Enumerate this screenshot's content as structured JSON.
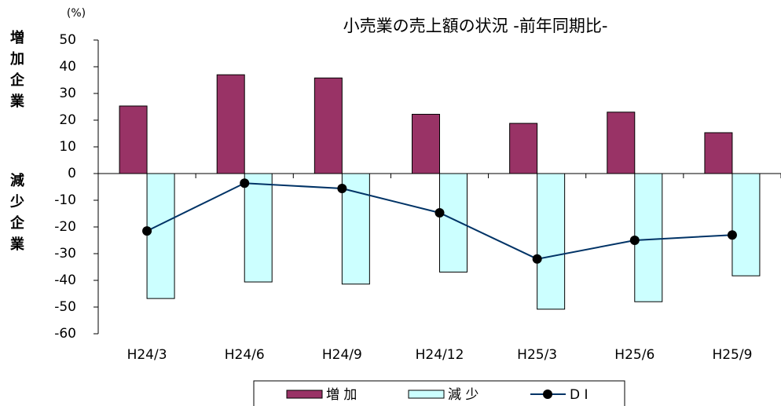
{
  "chart_data": {
    "type": "bar",
    "title": "小売業の売上額の状況 -前年同期比-",
    "unit_label": "(%)",
    "y_label_top": "増加企業",
    "y_label_bottom": "減少企業",
    "categories": [
      "H24/3",
      "H24/6",
      "H24/9",
      "H24/12",
      "H25/3",
      "H25/6",
      "H25/9"
    ],
    "series": [
      {
        "name": "増 加",
        "color": "#993366",
        "kind": "bar",
        "values": [
          25.3,
          37.0,
          35.8,
          22.2,
          18.8,
          23.0,
          15.3
        ]
      },
      {
        "name": "減 少",
        "color": "#ccffff",
        "kind": "bar",
        "values": [
          -46.8,
          -40.6,
          -41.4,
          -36.9,
          -50.8,
          -48.0,
          -38.3
        ]
      },
      {
        "name": "D I",
        "color": "#003366",
        "kind": "line",
        "values": [
          -21.5,
          -3.6,
          -5.6,
          -14.7,
          -32.0,
          -25.0,
          -23.0
        ]
      }
    ],
    "ylim": [
      -60,
      50
    ],
    "yticks": [
      -60,
      -50,
      -40,
      -30,
      -20,
      -10,
      0,
      10,
      20,
      30,
      40,
      50
    ],
    "grid": false
  }
}
